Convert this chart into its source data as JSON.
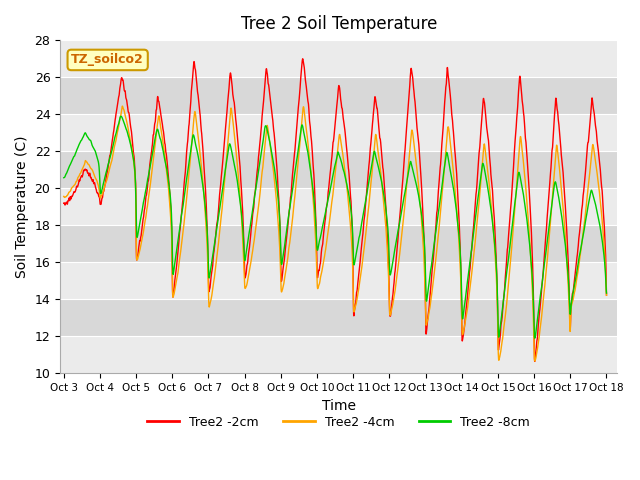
{
  "title": "Tree 2 Soil Temperature",
  "xlabel": "Time",
  "ylabel": "Soil Temperature (C)",
  "ylim": [
    10,
    28
  ],
  "annotation": "TZ_soilco2",
  "line_colors": [
    "#ff0000",
    "#ffa500",
    "#00cc00"
  ],
  "line_labels": [
    "Tree2 -2cm",
    "Tree2 -4cm",
    "Tree2 -8cm"
  ],
  "tick_labels": [
    "Oct 3",
    "Oct 4",
    "Oct 5",
    "Oct 6",
    "Oct 7",
    "Oct 8",
    "Oct 9",
    "Oct 10",
    "Oct 11",
    "Oct 12",
    "Oct 13",
    "Oct 14",
    "Oct 15",
    "Oct 16",
    "Oct 17",
    "Oct 18"
  ],
  "yticks": [
    10,
    12,
    14,
    16,
    18,
    20,
    22,
    24,
    26,
    28
  ],
  "background_color": "#ffffff",
  "plot_bg_color": "#e0e0e0",
  "band_color_dark": "#d8d8d8",
  "band_color_light": "#ebebeb"
}
